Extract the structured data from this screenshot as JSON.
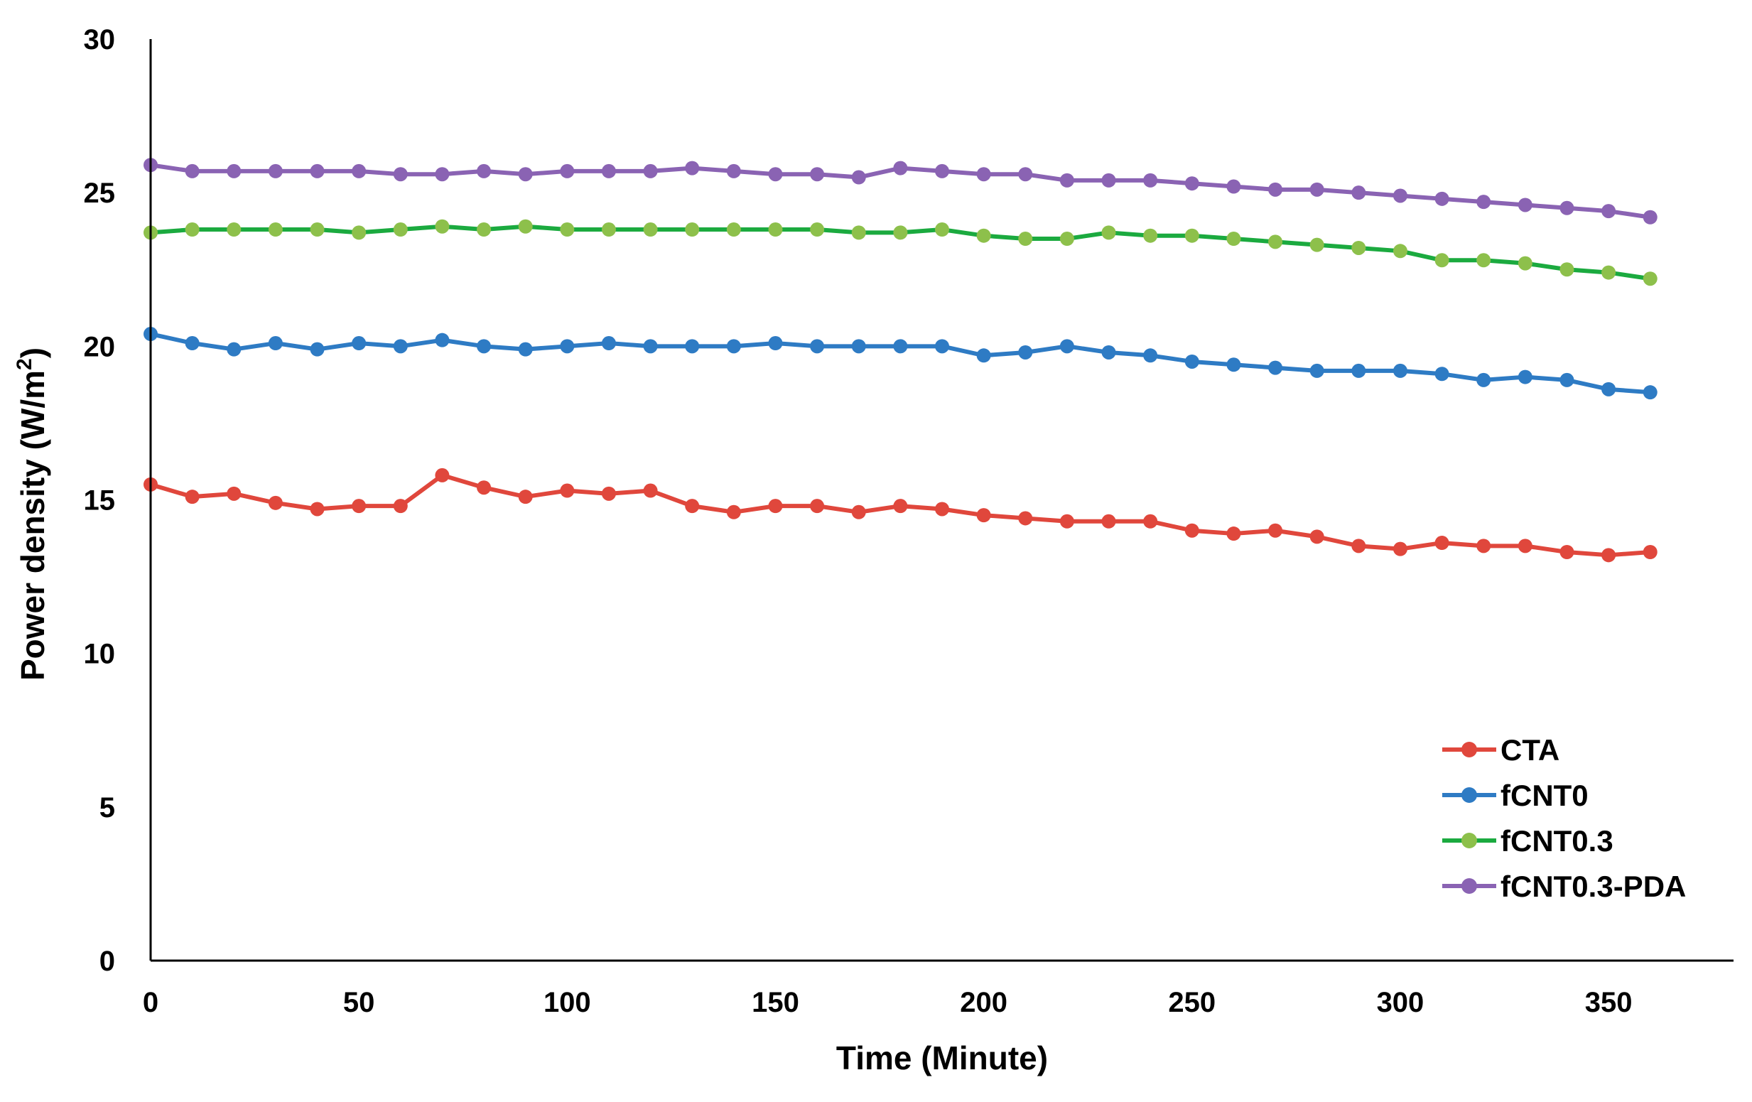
{
  "chart_data": {
    "type": "line",
    "xlabel": "Time (Minute)",
    "ylabel": "Power density  (W/m",
    "ylabel_sup": "2",
    "ylabel_close": ")",
    "xlim": [
      0,
      380
    ],
    "ylim": [
      0,
      30
    ],
    "xticks": [
      0,
      50,
      100,
      150,
      200,
      250,
      300,
      350
    ],
    "yticks": [
      0,
      5,
      10,
      15,
      20,
      25,
      30
    ],
    "grid": false,
    "legend_position": "bottom-right",
    "series": [
      {
        "name": "CTA",
        "color": "#E0473C",
        "x": [
          0,
          10,
          20,
          30,
          40,
          50,
          60,
          70,
          80,
          90,
          100,
          110,
          120,
          130,
          140,
          150,
          160,
          170,
          180,
          190,
          200,
          210,
          220,
          230,
          240,
          250,
          260,
          270,
          280,
          290,
          300,
          310,
          320,
          330,
          340,
          350,
          360
        ],
        "values": [
          15.5,
          15.1,
          15.2,
          14.9,
          14.7,
          14.8,
          14.8,
          15.8,
          15.4,
          15.1,
          15.3,
          15.2,
          15.3,
          14.8,
          14.6,
          14.8,
          14.8,
          14.6,
          14.8,
          14.7,
          14.5,
          14.4,
          14.3,
          14.3,
          14.3,
          14.0,
          13.9,
          14.0,
          13.8,
          13.5,
          13.4,
          13.6,
          13.5,
          13.5,
          13.3,
          13.2,
          13.3
        ]
      },
      {
        "name": "fCNT0",
        "color": "#2E7BC4",
        "x": [
          0,
          10,
          20,
          30,
          40,
          50,
          60,
          70,
          80,
          90,
          100,
          110,
          120,
          130,
          140,
          150,
          160,
          170,
          180,
          190,
          200,
          210,
          220,
          230,
          240,
          250,
          260,
          270,
          280,
          290,
          300,
          310,
          320,
          330,
          340,
          350,
          360
        ],
        "values": [
          20.4,
          20.1,
          19.9,
          20.1,
          19.9,
          20.1,
          20.0,
          20.2,
          20.0,
          19.9,
          20.0,
          20.1,
          20.0,
          20.0,
          20.0,
          20.1,
          20.0,
          20.0,
          20.0,
          20.0,
          19.7,
          19.8,
          20.0,
          19.8,
          19.7,
          19.5,
          19.4,
          19.3,
          19.2,
          19.2,
          19.2,
          19.1,
          18.9,
          19.0,
          18.9,
          18.6,
          18.5
        ]
      },
      {
        "name": "fCNT0.3",
        "color": "#8DC04B",
        "line_color": "#1BAA3F",
        "x": [
          0,
          10,
          20,
          30,
          40,
          50,
          60,
          70,
          80,
          90,
          100,
          110,
          120,
          130,
          140,
          150,
          160,
          170,
          180,
          190,
          200,
          210,
          220,
          230,
          240,
          250,
          260,
          270,
          280,
          290,
          300,
          310,
          320,
          330,
          340,
          350,
          360
        ],
        "values": [
          23.7,
          23.8,
          23.8,
          23.8,
          23.8,
          23.7,
          23.8,
          23.9,
          23.8,
          23.9,
          23.8,
          23.8,
          23.8,
          23.8,
          23.8,
          23.8,
          23.8,
          23.7,
          23.7,
          23.8,
          23.6,
          23.5,
          23.5,
          23.7,
          23.6,
          23.6,
          23.5,
          23.4,
          23.3,
          23.2,
          23.1,
          22.8,
          22.8,
          22.7,
          22.5,
          22.4,
          22.2
        ]
      },
      {
        "name": "fCNT0.3-PDA",
        "color": "#8A63B3",
        "x": [
          0,
          10,
          20,
          30,
          40,
          50,
          60,
          70,
          80,
          90,
          100,
          110,
          120,
          130,
          140,
          150,
          160,
          170,
          180,
          190,
          200,
          210,
          220,
          230,
          240,
          250,
          260,
          270,
          280,
          290,
          300,
          310,
          320,
          330,
          340,
          350,
          360
        ],
        "values": [
          25.9,
          25.7,
          25.7,
          25.7,
          25.7,
          25.7,
          25.6,
          25.6,
          25.7,
          25.6,
          25.7,
          25.7,
          25.7,
          25.8,
          25.7,
          25.6,
          25.6,
          25.5,
          25.8,
          25.7,
          25.6,
          25.6,
          25.4,
          25.4,
          25.4,
          25.3,
          25.2,
          25.1,
          25.1,
          25.0,
          24.9,
          24.8,
          24.7,
          24.6,
          24.5,
          24.4,
          24.2
        ]
      }
    ]
  }
}
